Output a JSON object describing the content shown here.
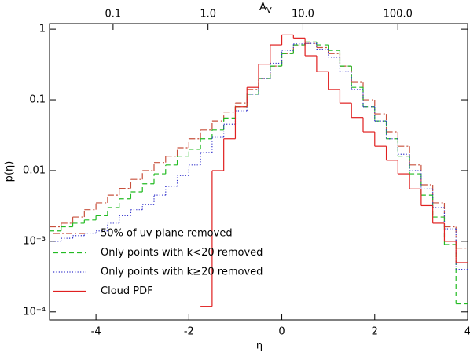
{
  "chart_data": {
    "type": "step",
    "xlabel": "η",
    "ylabel": "p(η)",
    "x2label": "A",
    "x2label_sub": "V",
    "xlim": [
      -5,
      4
    ],
    "xticks": [
      -4,
      -2,
      0,
      2,
      4
    ],
    "x2scale": "log",
    "x2lim": [
      0.0214,
      543
    ],
    "x2ticks": [
      0.1,
      {
        "value": 1,
        "label": "1.0"
      },
      {
        "value": 10,
        "label": "10.0"
      },
      {
        "value": 100,
        "label": "100.0"
      }
    ],
    "yscale": "log",
    "ylim": [
      7.7e-05,
      1.2
    ],
    "yticks": [
      {
        "value": 0.0001,
        "label": "10⁻⁴"
      },
      {
        "value": 0.001,
        "label": "10⁻³"
      },
      0.01,
      0.1,
      1
    ],
    "legend": "lower left",
    "x": [
      -5,
      -4.75,
      -4.5,
      -4.25,
      -4,
      -3.75,
      -3.5,
      -3.25,
      -3,
      -2.75,
      -2.5,
      -2.25,
      -2,
      -1.75,
      -1.5,
      -1.25,
      -1,
      -0.75,
      -0.5,
      -0.25,
      0,
      0.25,
      0.5,
      0.75,
      1,
      1.25,
      1.5,
      1.75,
      2,
      2.25,
      2.5,
      2.75,
      3,
      3.25,
      3.5,
      3.75
    ],
    "series": [
      {
        "name": "50% of uv plane removed",
        "color": "#c8503c",
        "linestyle": "dashdot",
        "values": [
          0.0016,
          0.0018,
          0.0022,
          0.0028,
          0.0035,
          0.0045,
          0.0056,
          0.0075,
          0.01,
          0.013,
          0.016,
          0.021,
          0.028,
          0.038,
          0.05,
          0.067,
          0.09,
          0.14,
          0.2,
          0.3,
          0.45,
          0.58,
          0.63,
          0.55,
          0.45,
          0.3,
          0.18,
          0.1,
          0.063,
          0.035,
          0.022,
          0.012,
          0.0063,
          0.0035,
          0.0016,
          0.0008
        ]
      },
      {
        "name": "Only points with k<20 removed",
        "color": "#22bb22",
        "linestyle": "dashed",
        "values": [
          0.0014,
          0.0016,
          0.0018,
          0.002,
          0.0023,
          0.003,
          0.004,
          0.005,
          0.0065,
          0.009,
          0.012,
          0.016,
          0.02,
          0.028,
          0.038,
          0.055,
          0.08,
          0.12,
          0.2,
          0.3,
          0.45,
          0.6,
          0.66,
          0.6,
          0.5,
          0.3,
          0.15,
          0.08,
          0.05,
          0.028,
          0.016,
          0.009,
          0.0045,
          0.0022,
          0.0009,
          0.00013
        ]
      },
      {
        "name": "Only points with k≥20 removed",
        "color": "#3333cc",
        "linestyle": "dotted",
        "values": [
          0.001,
          0.0011,
          0.0012,
          0.0013,
          0.0014,
          0.0018,
          0.0023,
          0.0028,
          0.0033,
          0.0045,
          0.006,
          0.0085,
          0.012,
          0.018,
          0.03,
          0.045,
          0.07,
          0.12,
          0.2,
          0.33,
          0.5,
          0.62,
          0.63,
          0.52,
          0.4,
          0.25,
          0.14,
          0.08,
          0.05,
          0.028,
          0.017,
          0.01,
          0.0055,
          0.003,
          0.0015,
          0.0004
        ]
      },
      {
        "name": "Cloud PDF",
        "color": "#e02020",
        "linestyle": "solid",
        "values": [
          null,
          null,
          null,
          null,
          null,
          null,
          null,
          null,
          null,
          null,
          null,
          null,
          null,
          0.00012,
          0.01,
          0.028,
          0.08,
          0.15,
          0.32,
          0.6,
          0.83,
          0.75,
          0.42,
          0.25,
          0.14,
          0.09,
          0.056,
          0.035,
          0.022,
          0.014,
          0.009,
          0.0055,
          0.0032,
          0.0018,
          0.001,
          0.0005
        ]
      }
    ]
  }
}
